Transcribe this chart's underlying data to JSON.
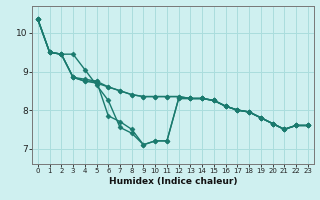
{
  "bg_color": "#cff0f0",
  "grid_color": "#aadddd",
  "line_color": "#1a7a6e",
  "marker": "D",
  "markersize": 2.5,
  "linewidth": 1.0,
  "xlabel": "Humidex (Indice chaleur)",
  "xlabel_fontsize": 6.5,
  "xlabel_bold": true,
  "ylabel_ticks": [
    7,
    8,
    9,
    10
  ],
  "ytick_fontsize": 6.5,
  "xtick_fontsize": 5.0,
  "xlim": [
    -0.5,
    23.5
  ],
  "ylim": [
    6.6,
    10.7
  ],
  "series": [
    [
      10.35,
      9.5,
      9.45,
      8.85,
      8.75,
      8.75,
      8.6,
      8.5,
      8.4,
      8.35,
      8.35,
      8.35,
      8.35,
      8.3,
      8.3,
      8.25,
      8.1,
      8.0,
      7.95,
      7.8,
      7.65,
      7.5,
      7.6,
      7.6
    ],
    [
      10.35,
      9.5,
      9.45,
      9.45,
      9.05,
      8.65,
      8.25,
      7.55,
      7.4,
      7.1,
      7.2,
      7.2,
      8.3,
      8.3,
      8.3,
      8.25,
      8.1,
      8.0,
      7.95,
      7.8,
      7.65,
      7.5,
      7.6,
      7.6
    ],
    [
      10.35,
      9.5,
      9.45,
      8.85,
      8.8,
      8.75,
      7.85,
      7.7,
      7.5,
      7.1,
      7.2,
      7.2,
      8.3,
      8.3,
      8.3,
      8.25,
      8.1,
      8.0,
      7.95,
      7.8,
      7.65,
      7.5,
      7.6,
      7.6
    ],
    [
      10.35,
      9.5,
      9.45,
      8.85,
      8.75,
      8.7,
      8.6,
      8.5,
      8.4,
      8.35,
      8.35,
      8.35,
      8.35,
      8.3,
      8.3,
      8.25,
      8.1,
      8.0,
      7.95,
      7.8,
      7.65,
      7.5,
      7.6,
      7.6
    ]
  ]
}
